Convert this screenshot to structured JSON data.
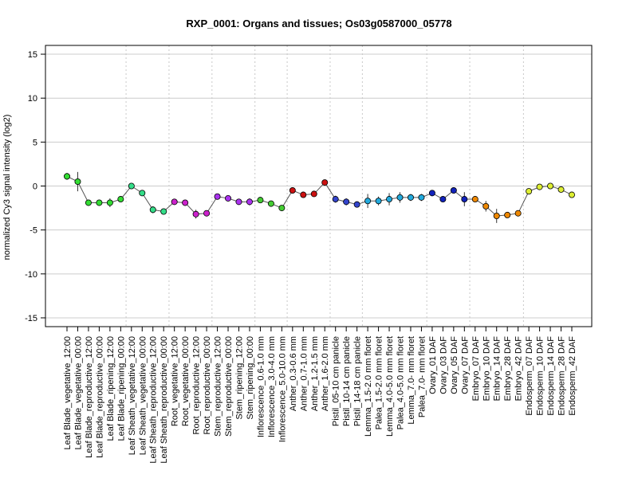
{
  "chart_data": {
    "type": "line",
    "title": "RXP_0001: Organs and tissues; Os03g0587000_05778",
    "ylabel": "normalized Cy3 signal intensity (log2)",
    "xlabel": "",
    "ylim": [
      -16,
      16
    ],
    "yticks": [
      -15,
      -10,
      -5,
      0,
      5,
      10,
      15
    ],
    "grid": "horizontal gridlines at y ticks; dotted vertical separators between tissue groups",
    "categories": [
      "Leaf Blade_vegetative_12:00",
      "Leaf Blade_vegetative_00:00",
      "Leaf Blade_reproductive_12:00",
      "Leaf Blade_reproductive_00:00",
      "Leaf Blade_ripening_12:00",
      "Leaf Blade_ripening_00:00",
      "Leaf Sheath_vegetative_12:00",
      "Leaf Sheath_vegetative_00:00",
      "Leaf Sheath_reproductive_12:00",
      "Leaf Sheath_reproductive_00:00",
      "Root_vegetative_12:00",
      "Root_vegetative_00:00",
      "Root_reproductive_12:00",
      "Root_reproductive_00:00",
      "Stem_reproductive_12:00",
      "Stem_reproductive_00:00",
      "Stem_ripening_12:00",
      "Stem_ripening_00:00",
      "Inflorescence_0.6-1.0 mm",
      "Inflorescence_3.0-4.0 mm",
      "Inflorescence_5.0-10.0 mm",
      "Anther_0.3-0.6 mm",
      "Anther_0.7-1.0 mm",
      "Anther_1.2-1.5 mm",
      "Anther_1.6-2.0 mm",
      "Pistil_05-10 cm panicle",
      "Pistil_10-14 cm panicle",
      "Pistil_14-18 cm panicle",
      "Lemma_1.5-2.0 mm floret",
      "Palea_1.5-2.0 mm floret",
      "Lemma_4.0-5.0 mm floret",
      "Palea_4.0-5.0 mm floret",
      "Lemma_7.0- mm floret",
      "Palea_7.0- mm floret",
      "Ovary_01 DAF",
      "Ovary_03 DAF",
      "Ovary_05 DAF",
      "Ovary_07 DAF",
      "Embryo_07 DAF",
      "Embryo_10 DAF",
      "Embryo_14 DAF",
      "Embryo_28 DAF",
      "Embryo_42 DAF",
      "Endosperm_07 DAF",
      "Endosperm_10 DAF",
      "Endosperm_14 DAF",
      "Endosperm_28 DAF",
      "Endosperm_42 DAF"
    ],
    "values": [
      1.1,
      0.5,
      -1.9,
      -1.9,
      -1.9,
      -1.5,
      0.0,
      -0.8,
      -2.7,
      -2.9,
      -1.8,
      -1.9,
      -3.2,
      -3.1,
      -1.2,
      -1.4,
      -1.8,
      -1.8,
      -1.6,
      -2.0,
      -2.5,
      -0.5,
      -1.0,
      -0.9,
      0.4,
      -1.5,
      -1.8,
      -2.1,
      -1.7,
      -1.7,
      -1.5,
      -1.3,
      -1.3,
      -1.3,
      -0.8,
      -1.5,
      -0.5,
      -1.5,
      -1.5,
      -2.3,
      -3.4,
      -3.3,
      -3.1,
      -0.6,
      -0.1,
      0.0,
      -0.4,
      -1.0
    ],
    "errors": [
      0.4,
      1.1,
      0.2,
      0.2,
      0.5,
      0.2,
      0.1,
      0.3,
      0.4,
      0.2,
      0.2,
      0.2,
      0.5,
      0.2,
      0.2,
      0.1,
      0.3,
      0.4,
      0.2,
      0.2,
      0.3,
      0.2,
      0.2,
      0.1,
      0.3,
      0.4,
      0.4,
      0.3,
      0.8,
      0.5,
      0.7,
      0.6,
      0.4,
      0.4,
      0.2,
      0.3,
      0.3,
      0.8,
      0.3,
      0.6,
      0.8,
      0.3,
      0.3,
      0.3,
      0.2,
      0.2,
      0.3,
      0.2
    ],
    "groups": [
      {
        "start": 0,
        "end": 5,
        "color": "#33dd33"
      },
      {
        "start": 6,
        "end": 9,
        "color": "#33dd88"
      },
      {
        "start": 10,
        "end": 13,
        "color": "#cc22cc"
      },
      {
        "start": 14,
        "end": 17,
        "color": "#aa33ee"
      },
      {
        "start": 18,
        "end": 20,
        "color": "#44cc33"
      },
      {
        "start": 21,
        "end": 24,
        "color": "#cc1111"
      },
      {
        "start": 25,
        "end": 27,
        "color": "#3344cc"
      },
      {
        "start": 28,
        "end": 33,
        "color": "#22aadd"
      },
      {
        "start": 34,
        "end": 37,
        "color": "#1122bb"
      },
      {
        "start": 38,
        "end": 42,
        "color": "#ee8800"
      },
      {
        "start": 43,
        "end": 47,
        "color": "#ddee33"
      }
    ],
    "line_color": "#555555"
  }
}
